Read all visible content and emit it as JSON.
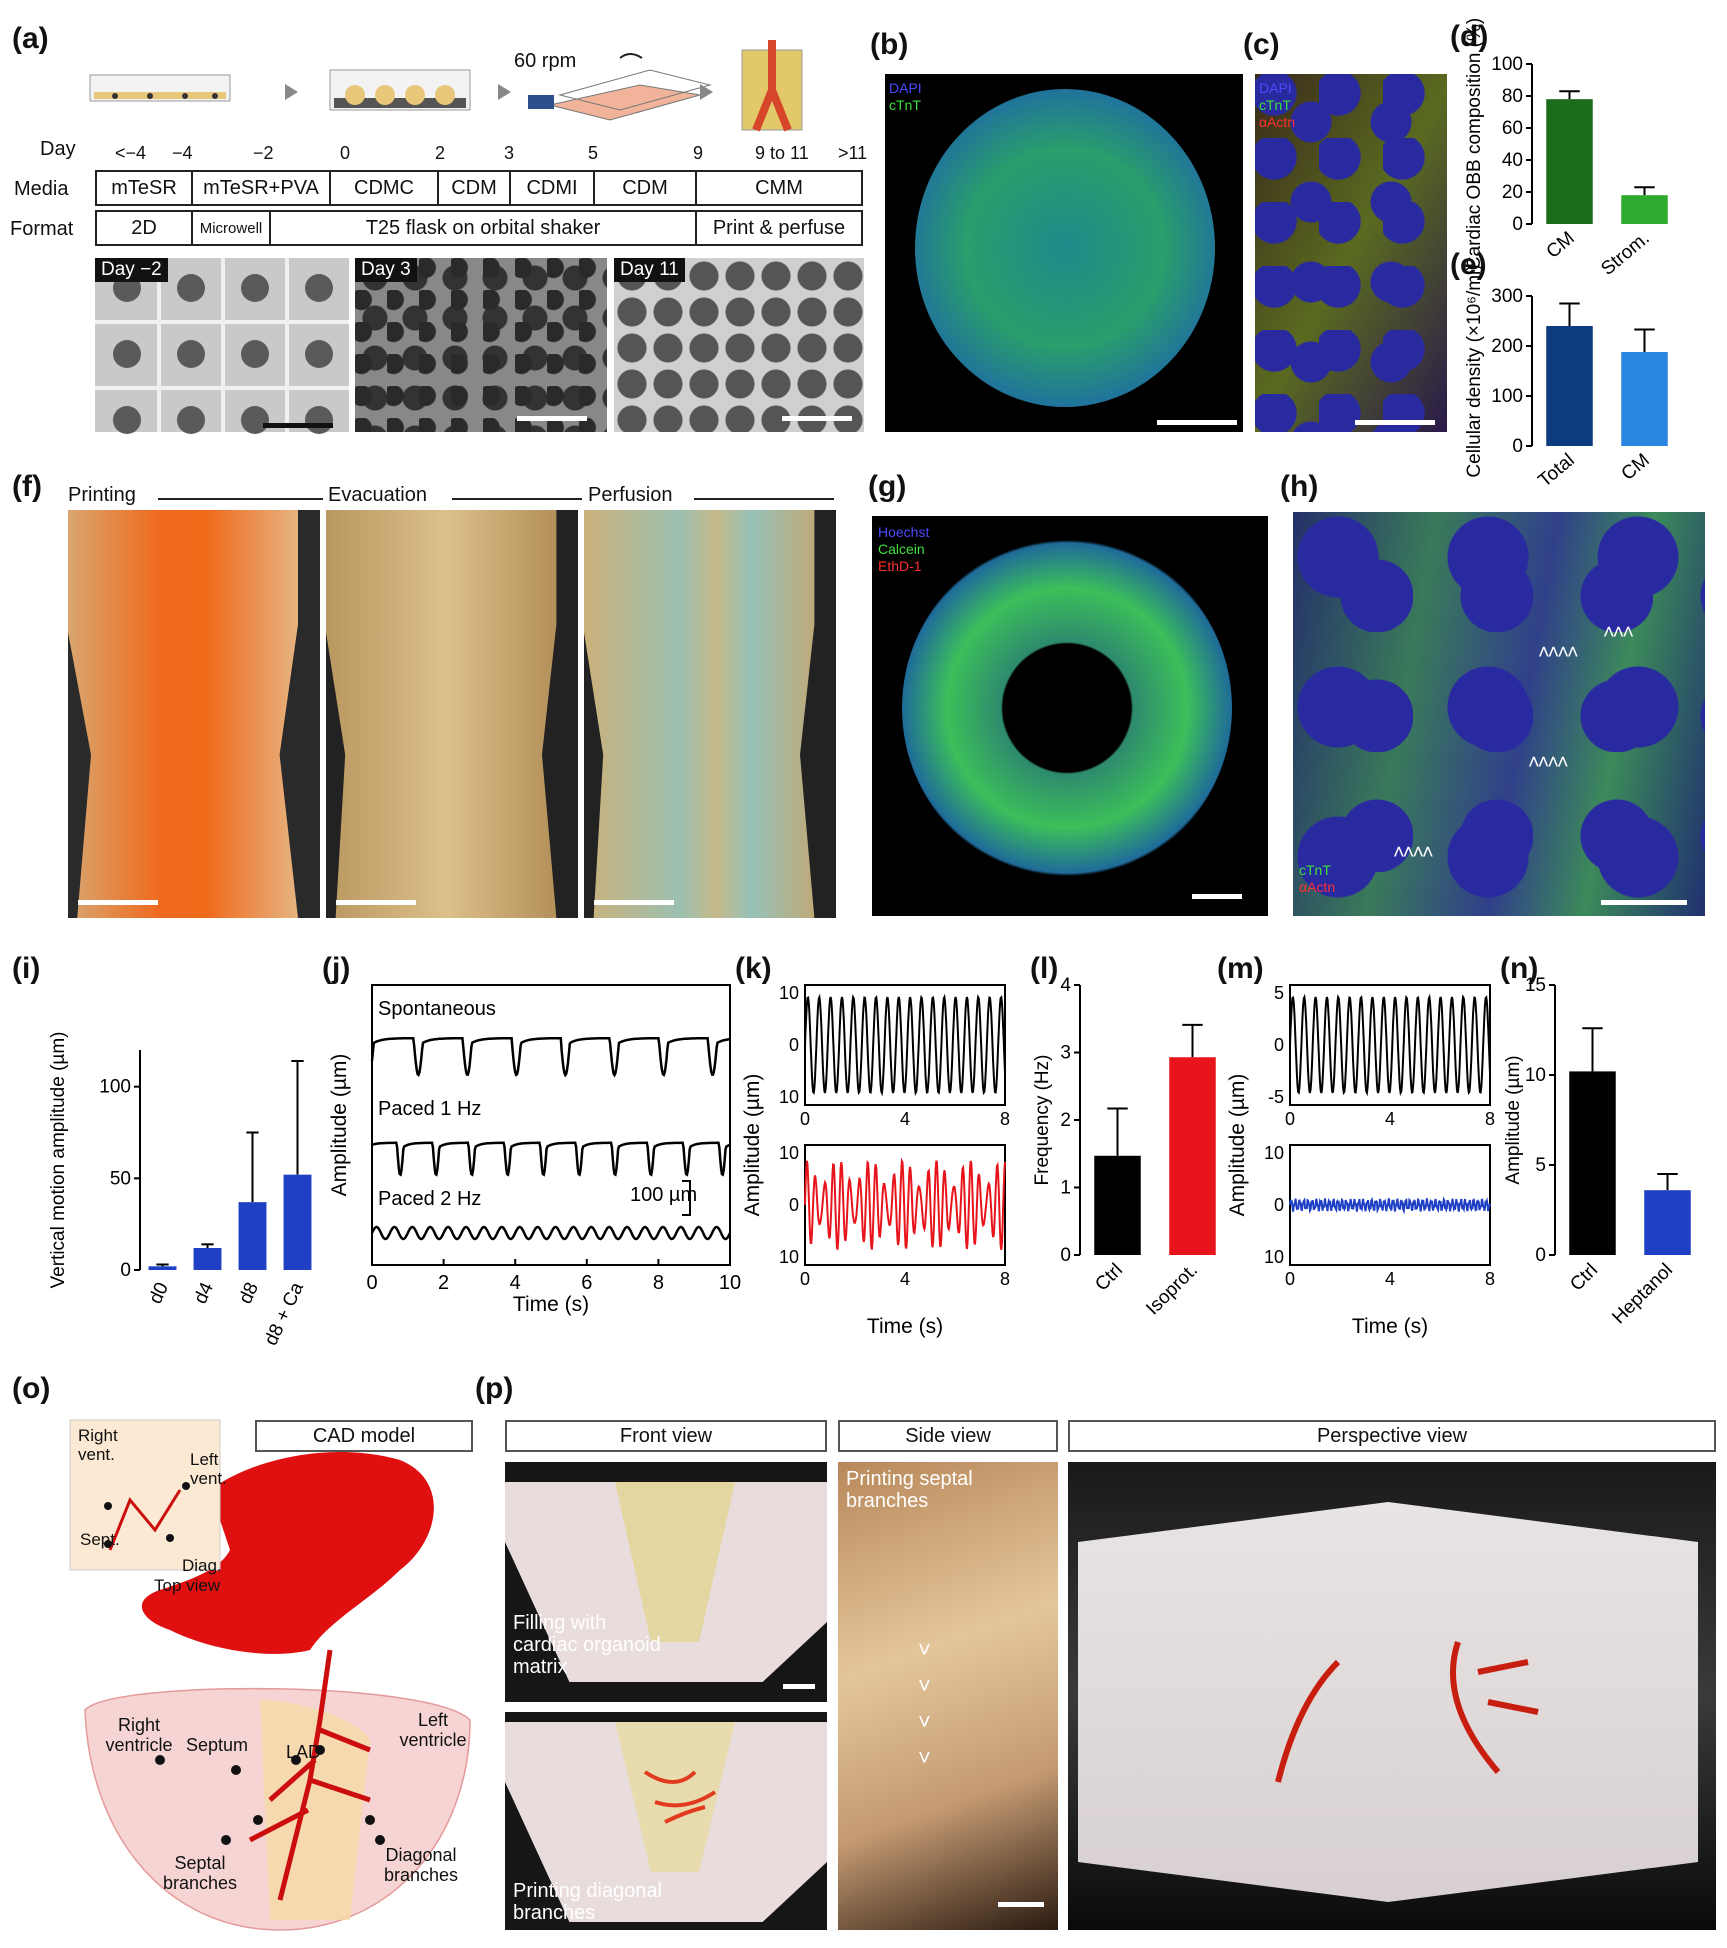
{
  "panels": {
    "a": "(a)",
    "b": "(b)",
    "c": "(c)",
    "d": "(d)",
    "e": "(e)",
    "f": "(f)",
    "g": "(g)",
    "h": "(h)",
    "i": "(i)",
    "j": "(j)",
    "k": "(k)",
    "l": "(l)",
    "m": "(m)",
    "n": "(n)",
    "o": "(o)",
    "p": "(p)"
  },
  "a": {
    "rpm": "60 rpm",
    "day_label": "Day",
    "media_label": "Media",
    "format_label": "Format",
    "days": [
      "<−4",
      "−4",
      "−2",
      "0",
      "2",
      "3",
      "5",
      "9",
      "9 to 11",
      ">11"
    ],
    "media": [
      "mTeSR",
      "mTeSR+PVA",
      "CDMC",
      "CDM",
      "CDMI",
      "CDM",
      "CMM"
    ],
    "format": [
      "2D",
      "Microwell",
      "T25 flask on orbital  shaker",
      "Print & perfuse"
    ],
    "image_tags": [
      "Day −2",
      "Day 3",
      "Day 11"
    ]
  },
  "b": {
    "stains": [
      "DAPI",
      "cTnT"
    ]
  },
  "c": {
    "stains": [
      "DAPI",
      "cTnT",
      "αActn"
    ]
  },
  "f": {
    "stages": [
      "Printing",
      "Evacuation",
      "Perfusion"
    ]
  },
  "g": {
    "stains": [
      "Hoechst",
      "Calcein",
      "EthD-1"
    ]
  },
  "h": {
    "stains": [
      "cTnT",
      "αActn"
    ]
  },
  "colors": {
    "dark_green": "#1a6b1a",
    "mid_green": "#2eaa2e",
    "navy": "#0d3c7e",
    "light_blue": "#2a86e0",
    "blue": "#1f3fc4",
    "red": "#e8141b",
    "black": "#000000"
  },
  "chart_data": [
    {
      "id": "d",
      "type": "bar",
      "categories": [
        "CM",
        "Strom."
      ],
      "values": [
        78,
        18
      ],
      "errors": [
        5,
        5
      ],
      "ylabel": "Cardiac OBB composition (%)",
      "ylim": [
        0,
        100
      ],
      "yticks": [
        0,
        20,
        40,
        60,
        80,
        100
      ]
    },
    {
      "id": "e",
      "type": "bar",
      "categories": [
        "Total",
        "CM"
      ],
      "values": [
        240,
        188
      ],
      "errors": [
        45,
        45
      ],
      "ylabel": "Cellular density (×10⁶/ml)",
      "ylim": [
        0,
        300
      ],
      "yticks": [
        0,
        100,
        200,
        300
      ]
    },
    {
      "id": "i",
      "type": "bar",
      "categories": [
        "d0",
        "d4",
        "d8",
        "d8 + Ca"
      ],
      "values": [
        2,
        12,
        37,
        52
      ],
      "errors": [
        1,
        2,
        38,
        62
      ],
      "ylabel": "Vertical motion amplitude (µm)",
      "ylim": [
        0,
        120
      ],
      "yticks": [
        0,
        50,
        100
      ]
    },
    {
      "id": "j",
      "type": "line",
      "series": [
        {
          "name": "Spontaneous"
        },
        {
          "name": "Paced 1 Hz"
        },
        {
          "name": "Paced 2 Hz"
        }
      ],
      "xlabel": "Time (s)",
      "ylabel": "Amplitude (µm)",
      "xlim": [
        0,
        10
      ],
      "xticks": [
        0,
        2,
        4,
        6,
        8,
        10
      ],
      "scale_label": "100 µm"
    },
    {
      "id": "k",
      "type": "line",
      "xlabel": "Time (s)",
      "ylabel": "Amplitude (µm)",
      "xlim": [
        0,
        8
      ],
      "xticks": [
        0,
        4,
        8
      ],
      "yticks_top": [
        "10",
        "0",
        "10"
      ],
      "yticks_bottom": [
        "10",
        "0",
        "10"
      ]
    },
    {
      "id": "l",
      "type": "bar",
      "categories": [
        "Ctrl",
        "Isoprot."
      ],
      "values": [
        1.47,
        2.93
      ],
      "errors": [
        0.7,
        0.48
      ],
      "ylabel": "Frequency (Hz)",
      "ylim": [
        0,
        4
      ],
      "yticks": [
        0,
        1,
        2,
        3,
        4
      ]
    },
    {
      "id": "m",
      "type": "line",
      "xlabel": "Time (s)",
      "ylabel": "Amplitude (µm)",
      "xlim": [
        0,
        8
      ],
      "xticks": [
        0,
        4,
        8
      ],
      "yticks_top": [
        "5",
        "0",
        "-5"
      ],
      "yticks_bottom": [
        "10",
        "0",
        "10"
      ]
    },
    {
      "id": "n",
      "type": "bar",
      "categories": [
        "Ctrl",
        "Heptanol"
      ],
      "values": [
        10.2,
        3.6
      ],
      "errors": [
        2.4,
        0.9
      ],
      "ylabel": "Amplitude (µm)",
      "ylim": [
        0,
        15
      ],
      "yticks": [
        0,
        5,
        10,
        15
      ]
    }
  ],
  "o": {
    "header": "CAD model",
    "inset_labels": [
      "Right vent.",
      "Left vent.",
      "Sept.",
      "Diag.",
      "Top view"
    ],
    "labels": [
      "Right ventricle",
      "Septum",
      "LAD",
      "Left ventricle",
      "Septal branches",
      "Diagonal branches"
    ]
  },
  "p": {
    "headers": [
      "Front view",
      "Side view",
      "Perspective view"
    ],
    "captions": [
      "Filling with cardiac organoid matrix",
      "Printing diagonal branches",
      "Printing septal branches"
    ]
  }
}
